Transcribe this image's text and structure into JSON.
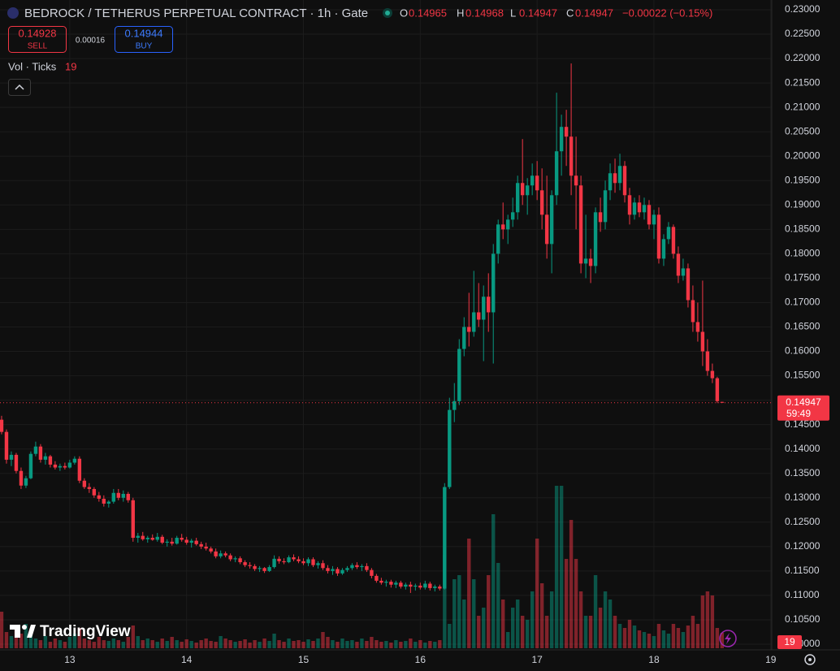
{
  "chart_data": {
    "type": "candlestick",
    "title": "BEDROCK / TETHERUS PERPETUAL CONTRACT · 1h · Gate",
    "ohlc_legend": [
      {
        "label": "O",
        "value": 0.14965
      },
      {
        "label": "H",
        "value": 0.14968
      },
      {
        "label": "L",
        "value": 0.14947
      },
      {
        "label": "C",
        "value": 0.14947
      }
    ],
    "change": "−0.00022 (−0.15%)",
    "sell": {
      "value": 0.14928,
      "label": "SELL"
    },
    "spread": 0.00016,
    "buy": {
      "value": 0.14944,
      "label": "BUY"
    },
    "volume_label": "Vol · Ticks",
    "categories": [
      null,
      null,
      null,
      null,
      null,
      null,
      null,
      null,
      null,
      null,
      null,
      null,
      null,
      null,
      null,
      null,
      null,
      null,
      null,
      null,
      null,
      null,
      null,
      null,
      null,
      null,
      null,
      null,
      null,
      null,
      null,
      null,
      null,
      null,
      null,
      null,
      null,
      null,
      null,
      null,
      null,
      null,
      null,
      null,
      null,
      null,
      null,
      null,
      null,
      null,
      null,
      null,
      null,
      null,
      null,
      null,
      null,
      null,
      null,
      null,
      null,
      null,
      null,
      null,
      null,
      null,
      null,
      null,
      null,
      null,
      null,
      null,
      null,
      null,
      null,
      null,
      null,
      null,
      null,
      null,
      null,
      null,
      null,
      null,
      null,
      null,
      null,
      null,
      null,
      null,
      null,
      null,
      null,
      null,
      null,
      null,
      null,
      null,
      null,
      null,
      null,
      null,
      null,
      null,
      null,
      null,
      null,
      null,
      null,
      null,
      null,
      null,
      null,
      null,
      null,
      null,
      null,
      null,
      null,
      null,
      null,
      null,
      null,
      null,
      null,
      null,
      null,
      null,
      null,
      null,
      null,
      null,
      null,
      null,
      null,
      null,
      null,
      null,
      null,
      null,
      null,
      null,
      null,
      null,
      null,
      null,
      null,
      null,
      null
    ],
    "candles": [
      [
        0.146,
        0.1468,
        0.143,
        0.1435
      ],
      [
        0.1435,
        0.144,
        0.137,
        0.1378
      ],
      [
        0.1378,
        0.1395,
        0.1365,
        0.1388
      ],
      [
        0.1388,
        0.1392,
        0.135,
        0.1355
      ],
      [
        0.1355,
        0.1362,
        0.1318,
        0.1325
      ],
      [
        0.1325,
        0.1345,
        0.132,
        0.134
      ],
      [
        0.134,
        0.1395,
        0.1338,
        0.139
      ],
      [
        0.139,
        0.1415,
        0.1385,
        0.1405
      ],
      [
        0.1405,
        0.141,
        0.1372,
        0.1378
      ],
      [
        0.1378,
        0.1392,
        0.1368,
        0.1385
      ],
      [
        0.1385,
        0.1388,
        0.1362,
        0.1368
      ],
      [
        0.1368,
        0.1375,
        0.1358,
        0.1362
      ],
      [
        0.1362,
        0.137,
        0.1355,
        0.1365
      ],
      [
        0.1365,
        0.1372,
        0.1358,
        0.1362
      ],
      [
        0.1362,
        0.1378,
        0.136,
        0.1372
      ],
      [
        0.1372,
        0.1385,
        0.1368,
        0.138
      ],
      [
        0.138,
        0.1385,
        0.133,
        0.1335
      ],
      [
        0.1335,
        0.134,
        0.1318,
        0.1322
      ],
      [
        0.1322,
        0.133,
        0.131,
        0.1318
      ],
      [
        0.1318,
        0.1322,
        0.13,
        0.1305
      ],
      [
        0.1305,
        0.1312,
        0.1292,
        0.1298
      ],
      [
        0.1298,
        0.1305,
        0.1282,
        0.1288
      ],
      [
        0.1288,
        0.1295,
        0.128,
        0.1292
      ],
      [
        0.1292,
        0.1318,
        0.1288,
        0.131
      ],
      [
        0.131,
        0.1318,
        0.1295,
        0.13
      ],
      [
        0.13,
        0.1315,
        0.1292,
        0.1308
      ],
      [
        0.1308,
        0.1312,
        0.129,
        0.1295
      ],
      [
        0.1295,
        0.13,
        0.121,
        0.1218
      ],
      [
        0.1218,
        0.1228,
        0.1208,
        0.1222
      ],
      [
        0.1222,
        0.123,
        0.1212,
        0.1215
      ],
      [
        0.1215,
        0.1222,
        0.1208,
        0.1218
      ],
      [
        0.1218,
        0.1225,
        0.1212,
        0.1214
      ],
      [
        0.1214,
        0.1228,
        0.121,
        0.122
      ],
      [
        0.122,
        0.1224,
        0.1205,
        0.1208
      ],
      [
        0.1208,
        0.1215,
        0.12,
        0.121
      ],
      [
        0.121,
        0.1218,
        0.1202,
        0.1206
      ],
      [
        0.1206,
        0.1222,
        0.1204,
        0.1218
      ],
      [
        0.1218,
        0.1226,
        0.121,
        0.1214
      ],
      [
        0.1214,
        0.122,
        0.1204,
        0.1208
      ],
      [
        0.1208,
        0.1216,
        0.1198,
        0.1212
      ],
      [
        0.1212,
        0.1218,
        0.1202,
        0.1205
      ],
      [
        0.1205,
        0.121,
        0.1195,
        0.12
      ],
      [
        0.12,
        0.1208,
        0.1192,
        0.1196
      ],
      [
        0.1196,
        0.12,
        0.1186,
        0.119
      ],
      [
        0.119,
        0.1196,
        0.1176,
        0.118
      ],
      [
        0.118,
        0.1192,
        0.1176,
        0.1186
      ],
      [
        0.1186,
        0.119,
        0.1178,
        0.1182
      ],
      [
        0.1182,
        0.1186,
        0.117,
        0.1174
      ],
      [
        0.1174,
        0.118,
        0.1168,
        0.1176
      ],
      [
        0.1176,
        0.118,
        0.1164,
        0.1168
      ],
      [
        0.1168,
        0.1172,
        0.1158,
        0.1162
      ],
      [
        0.1162,
        0.1168,
        0.1155,
        0.116
      ],
      [
        0.116,
        0.1164,
        0.115,
        0.1154
      ],
      [
        0.1154,
        0.116,
        0.1148,
        0.1156
      ],
      [
        0.1156,
        0.1158,
        0.1146,
        0.115
      ],
      [
        0.115,
        0.1162,
        0.1148,
        0.1158
      ],
      [
        0.1158,
        0.1182,
        0.1155,
        0.1175
      ],
      [
        0.1175,
        0.118,
        0.1165,
        0.117
      ],
      [
        0.117,
        0.1176,
        0.1164,
        0.1168
      ],
      [
        0.1168,
        0.1182,
        0.1166,
        0.1178
      ],
      [
        0.1178,
        0.1184,
        0.117,
        0.1174
      ],
      [
        0.1174,
        0.118,
        0.1166,
        0.117
      ],
      [
        0.117,
        0.1176,
        0.1162,
        0.1166
      ],
      [
        0.1166,
        0.1178,
        0.116,
        0.1174
      ],
      [
        0.1174,
        0.1178,
        0.1158,
        0.1162
      ],
      [
        0.1162,
        0.117,
        0.1155,
        0.1166
      ],
      [
        0.1166,
        0.1172,
        0.1152,
        0.1156
      ],
      [
        0.1156,
        0.1162,
        0.1145,
        0.115
      ],
      [
        0.115,
        0.116,
        0.1142,
        0.1154
      ],
      [
        0.1154,
        0.1158,
        0.114,
        0.1145
      ],
      [
        0.1145,
        0.1156,
        0.1142,
        0.1152
      ],
      [
        0.1152,
        0.116,
        0.1148,
        0.1156
      ],
      [
        0.1156,
        0.1166,
        0.1152,
        0.1162
      ],
      [
        0.1162,
        0.1168,
        0.1154,
        0.1158
      ],
      [
        0.1158,
        0.1164,
        0.115,
        0.116
      ],
      [
        0.116,
        0.1166,
        0.1148,
        0.1152
      ],
      [
        0.1152,
        0.1156,
        0.1135,
        0.114
      ],
      [
        0.114,
        0.1144,
        0.1126,
        0.113
      ],
      [
        0.113,
        0.1136,
        0.1122,
        0.1126
      ],
      [
        0.1126,
        0.1132,
        0.1118,
        0.1128
      ],
      [
        0.1128,
        0.1132,
        0.1116,
        0.1122
      ],
      [
        0.1122,
        0.113,
        0.1115,
        0.1126
      ],
      [
        0.1126,
        0.113,
        0.1114,
        0.1118
      ],
      [
        0.1118,
        0.1126,
        0.1112,
        0.1122
      ],
      [
        0.1122,
        0.1128,
        0.1105,
        0.1118
      ],
      [
        0.1118,
        0.1124,
        0.111,
        0.112
      ],
      [
        0.112,
        0.1126,
        0.1112,
        0.1116
      ],
      [
        0.1116,
        0.113,
        0.1112,
        0.1124
      ],
      [
        0.1124,
        0.1128,
        0.111,
        0.1115
      ],
      [
        0.1115,
        0.1122,
        0.1108,
        0.1118
      ],
      [
        0.1118,
        0.1122,
        0.111,
        0.1114
      ],
      [
        0.1114,
        0.133,
        0.1112,
        0.1322
      ],
      [
        0.1322,
        0.1505,
        0.1318,
        0.148
      ],
      [
        0.148,
        0.1535,
        0.1455,
        0.1498
      ],
      [
        0.1498,
        0.1625,
        0.149,
        0.1605
      ],
      [
        0.1605,
        0.167,
        0.159,
        0.165
      ],
      [
        0.165,
        0.172,
        0.161,
        0.164
      ],
      [
        0.164,
        0.1765,
        0.163,
        0.168
      ],
      [
        0.168,
        0.174,
        0.165,
        0.1665
      ],
      [
        0.1665,
        0.1735,
        0.158,
        0.1712
      ],
      [
        0.1712,
        0.176,
        0.164,
        0.168
      ],
      [
        0.168,
        0.182,
        0.1575,
        0.18
      ],
      [
        0.18,
        0.187,
        0.178,
        0.186
      ],
      [
        0.186,
        0.1905,
        0.183,
        0.185
      ],
      [
        0.185,
        0.188,
        0.182,
        0.187
      ],
      [
        0.187,
        0.1915,
        0.1855,
        0.1885
      ],
      [
        0.1885,
        0.196,
        0.187,
        0.1945
      ],
      [
        0.1945,
        0.2035,
        0.19,
        0.192
      ],
      [
        0.192,
        0.1955,
        0.188,
        0.194
      ],
      [
        0.194,
        0.1985,
        0.192,
        0.196
      ],
      [
        0.196,
        0.199,
        0.191,
        0.193
      ],
      [
        0.193,
        0.1975,
        0.185,
        0.188
      ],
      [
        0.188,
        0.196,
        0.179,
        0.182
      ],
      [
        0.182,
        0.193,
        0.176,
        0.192
      ],
      [
        0.192,
        0.213,
        0.19,
        0.201
      ],
      [
        0.201,
        0.2085,
        0.196,
        0.206
      ],
      [
        0.206,
        0.2095,
        0.198,
        0.204
      ],
      [
        0.204,
        0.219,
        0.192,
        0.196
      ],
      [
        0.196,
        0.204,
        0.185,
        0.194
      ],
      [
        0.194,
        0.196,
        0.176,
        0.178
      ],
      [
        0.178,
        0.188,
        0.175,
        0.179
      ],
      [
        0.179,
        0.181,
        0.174,
        0.1775
      ],
      [
        0.1775,
        0.1895,
        0.176,
        0.1885
      ],
      [
        0.1885,
        0.1915,
        0.1845,
        0.1865
      ],
      [
        0.1865,
        0.195,
        0.185,
        0.193
      ],
      [
        0.193,
        0.1985,
        0.191,
        0.1965
      ],
      [
        0.1965,
        0.1995,
        0.1925,
        0.1945
      ],
      [
        0.1945,
        0.2005,
        0.193,
        0.198
      ],
      [
        0.198,
        0.199,
        0.1905,
        0.192
      ],
      [
        0.192,
        0.1935,
        0.186,
        0.188
      ],
      [
        0.188,
        0.1915,
        0.187,
        0.1905
      ],
      [
        0.1905,
        0.192,
        0.1875,
        0.1885
      ],
      [
        0.1885,
        0.1915,
        0.187,
        0.19
      ],
      [
        0.19,
        0.191,
        0.185,
        0.186
      ],
      [
        0.186,
        0.189,
        0.183,
        0.188
      ],
      [
        0.188,
        0.1895,
        0.178,
        0.179
      ],
      [
        0.179,
        0.184,
        0.1775,
        0.183
      ],
      [
        0.183,
        0.1865,
        0.182,
        0.1855
      ],
      [
        0.1855,
        0.186,
        0.179,
        0.18
      ],
      [
        0.18,
        0.1815,
        0.174,
        0.1755
      ],
      [
        0.1755,
        0.179,
        0.1745,
        0.177
      ],
      [
        0.177,
        0.178,
        0.169,
        0.1705
      ],
      [
        0.1705,
        0.1735,
        0.164,
        0.166
      ],
      [
        0.166,
        0.17,
        0.162,
        0.164
      ],
      [
        0.164,
        0.1745,
        0.157,
        0.16
      ],
      [
        0.16,
        0.1625,
        0.155,
        0.156
      ],
      [
        0.156,
        0.1575,
        0.1535,
        0.1545
      ],
      [
        0.1545,
        0.1548,
        0.1494,
        0.1498
      ],
      [
        0.14965,
        0.14968,
        0.14947,
        0.14947
      ]
    ],
    "volume": [
      45,
      20,
      15,
      25,
      18,
      30,
      22,
      12,
      10,
      15,
      8,
      12,
      10,
      8,
      14,
      18,
      25,
      12,
      10,
      8,
      14,
      10,
      9,
      12,
      10,
      8,
      14,
      28,
      15,
      10,
      12,
      10,
      8,
      12,
      9,
      14,
      10,
      8,
      11,
      9,
      7,
      10,
      12,
      9,
      8,
      15,
      12,
      10,
      8,
      9,
      11,
      7,
      10,
      8,
      12,
      9,
      18,
      10,
      8,
      12,
      9,
      10,
      8,
      11,
      9,
      12,
      20,
      14,
      10,
      8,
      12,
      9,
      10,
      8,
      12,
      9,
      14,
      10,
      8,
      9,
      7,
      10,
      8,
      9,
      12,
      8,
      10,
      7,
      9,
      8,
      10,
      115,
      30,
      85,
      90,
      60,
      135,
      85,
      40,
      50,
      90,
      165,
      105,
      60,
      20,
      50,
      60,
      40,
      35,
      70,
      135,
      80,
      40,
      70,
      200,
      200,
      110,
      158,
      110,
      70,
      40,
      40,
      90,
      50,
      70,
      60,
      40,
      30,
      25,
      35,
      28,
      22,
      20,
      18,
      15,
      30,
      22,
      18,
      30,
      25,
      20,
      28,
      40,
      30,
      65,
      70,
      65,
      25,
      19
    ],
    "volume_lim": [
      0,
      260
    ],
    "up_color": "#089981",
    "down_color": "#f23645",
    "ylim": [
      0.1,
      0.23
    ],
    "yticks": [
      {
        "value": 0.1,
        "label": "0.10000"
      },
      {
        "value": 0.105,
        "label": "0.10500"
      },
      {
        "value": 0.11,
        "label": "0.11000"
      },
      {
        "value": 0.115,
        "label": "0.11500"
      },
      {
        "value": 0.12,
        "label": "0.12000"
      },
      {
        "value": 0.125,
        "label": "0.12500"
      },
      {
        "value": 0.13,
        "label": "0.13000"
      },
      {
        "value": 0.135,
        "label": "0.13500"
      },
      {
        "value": 0.14,
        "label": "0.14000"
      },
      {
        "value": 0.145,
        "label": "0.14500"
      },
      {
        "value": 0.15,
        "label": "0.15000"
      },
      {
        "value": 0.155,
        "label": "0.15500"
      },
      {
        "value": 0.16,
        "label": "0.16000"
      },
      {
        "value": 0.165,
        "label": "0.16500"
      },
      {
        "value": 0.17,
        "label": "0.17000"
      },
      {
        "value": 0.175,
        "label": "0.17500"
      },
      {
        "value": 0.18,
        "label": "0.18000"
      },
      {
        "value": 0.185,
        "label": "0.18500"
      },
      {
        "value": 0.19,
        "label": "0.19000"
      },
      {
        "value": 0.195,
        "label": "0.19500"
      },
      {
        "value": 0.2,
        "label": "0.20000"
      },
      {
        "value": 0.205,
        "label": "0.20500"
      },
      {
        "value": 0.21,
        "label": "0.21000"
      },
      {
        "value": 0.215,
        "label": "0.21500"
      },
      {
        "value": 0.22,
        "label": "0.22000"
      },
      {
        "value": 0.225,
        "label": "0.22500"
      },
      {
        "value": 0.23,
        "label": "0.23000"
      }
    ],
    "xlim": [
      -0.33,
      158.2
    ],
    "xticks": [
      {
        "value": 14,
        "label": "13"
      },
      {
        "value": 38,
        "label": "14"
      },
      {
        "value": 62,
        "label": "15"
      },
      {
        "value": 86,
        "label": "16"
      },
      {
        "value": 110,
        "label": "17"
      },
      {
        "value": 134,
        "label": "18"
      },
      {
        "value": 158,
        "label": "19"
      }
    ],
    "grid": true,
    "last_price_line": true,
    "countdown": "59:49",
    "brand": "TradingView"
  }
}
